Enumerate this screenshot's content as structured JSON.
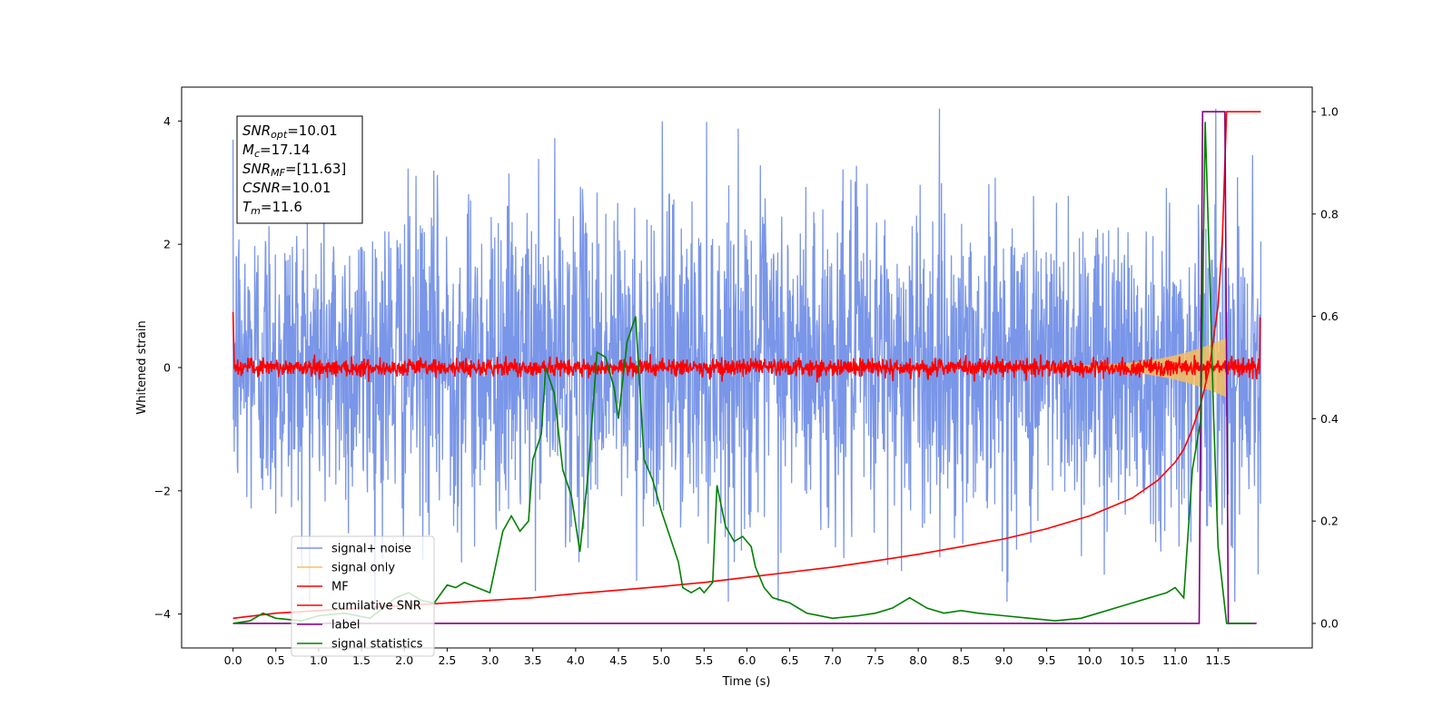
{
  "chart_data": {
    "type": "line",
    "xlabel": "Time (s)",
    "ylabel": "Whitened strain",
    "xlim": [
      -0.6,
      12.6
    ],
    "ylim_left": [
      -4.55,
      4.55
    ],
    "ylim_right": [
      -0.048,
      1.048
    ],
    "x_ticks": [
      0.0,
      0.5,
      1.0,
      1.5,
      2.0,
      2.5,
      3.0,
      3.5,
      4.0,
      4.5,
      5.0,
      5.5,
      6.0,
      6.5,
      7.0,
      7.5,
      8.0,
      8.5,
      9.0,
      9.5,
      10.0,
      10.5,
      11.0,
      11.5
    ],
    "x_tick_labels": [
      "0.0",
      "0.5",
      "1.0",
      "1.5",
      "2.0",
      "2.5",
      "3.0",
      "3.5",
      "4.0",
      "4.5",
      "5.0",
      "5.5",
      "6.0",
      "6.5",
      "7.0",
      "7.5",
      "8.0",
      "8.5",
      "9.0",
      "9.5",
      "10.0",
      "10.5",
      "11.0",
      "11.5"
    ],
    "y_left_ticks": [
      -4,
      -2,
      0,
      2,
      4
    ],
    "y_left_tick_labels": [
      "−4",
      "−2",
      "0",
      "2",
      "4"
    ],
    "y_right_ticks": [
      0.0,
      0.2,
      0.4,
      0.6,
      0.8,
      1.0
    ],
    "y_right_tick_labels": [
      "0.0",
      "0.2",
      "0.4",
      "0.6",
      "0.8",
      "1.0"
    ],
    "grid": false,
    "legend_placement": "lower-left",
    "annotation": [
      {
        "var": "SNR",
        "sub": "opt",
        "value": "=10.01"
      },
      {
        "var": "M",
        "sub": "c",
        "value": "=17.14"
      },
      {
        "var": "SNR",
        "sub": "MF",
        "value": "=[11.63]"
      },
      {
        "var": "CSNR",
        "sub": "",
        "value": "=10.01"
      },
      {
        "var": "T",
        "sub": "m",
        "value": "=11.6"
      }
    ],
    "series": [
      {
        "name": "signal+ noise",
        "color": "#7a96e8",
        "axis": "left",
        "kind": "noise",
        "t_start": 0.0,
        "t_end": 12.0,
        "amplitude": 2.7
      },
      {
        "name": "signal only",
        "color": "#f5c060",
        "axis": "left",
        "kind": "chirp",
        "t_start": 0.0,
        "t_end": 12.0,
        "merger_time": 11.6
      },
      {
        "name": "MF",
        "color": "#ff0000",
        "axis": "left",
        "kind": "noise",
        "t_start": 0.0,
        "t_end": 12.0,
        "amplitude": 0.13
      },
      {
        "name": "cumilative SNR",
        "color": "#ff0000",
        "axis": "right",
        "x": [
          0.0,
          0.5,
          1.0,
          1.5,
          2.0,
          2.5,
          3.0,
          3.5,
          4.0,
          4.5,
          5.0,
          5.5,
          6.0,
          6.5,
          7.0,
          7.5,
          8.0,
          8.5,
          9.0,
          9.5,
          10.0,
          10.5,
          10.8,
          11.0,
          11.1,
          11.2,
          11.3,
          11.4,
          11.5,
          11.55,
          11.6,
          12.0
        ],
        "y": [
          0.01,
          0.02,
          0.025,
          0.03,
          0.035,
          0.04,
          0.045,
          0.05,
          0.058,
          0.065,
          0.072,
          0.08,
          0.09,
          0.1,
          0.11,
          0.122,
          0.135,
          0.15,
          0.165,
          0.185,
          0.21,
          0.245,
          0.28,
          0.315,
          0.34,
          0.38,
          0.43,
          0.5,
          0.62,
          0.75,
          1.0,
          1.0
        ]
      },
      {
        "name": "label",
        "color": "#800080",
        "axis": "right",
        "x": [
          0.0,
          11.28,
          11.32,
          11.58,
          11.62,
          11.95
        ],
        "y": [
          0.0,
          0.0,
          1.0,
          1.0,
          0.0,
          0.0
        ]
      },
      {
        "name": "signal statistics",
        "color": "#008000",
        "axis": "right",
        "x": [
          0.0,
          0.2,
          0.35,
          0.5,
          0.8,
          1.0,
          1.3,
          1.6,
          1.9,
          2.05,
          2.2,
          2.35,
          2.5,
          2.6,
          2.7,
          2.85,
          3.0,
          3.1,
          3.15,
          3.25,
          3.35,
          3.45,
          3.5,
          3.6,
          3.65,
          3.75,
          3.85,
          3.95,
          4.05,
          4.15,
          4.25,
          4.35,
          4.45,
          4.5,
          4.6,
          4.7,
          4.8,
          4.9,
          5.0,
          5.1,
          5.2,
          5.25,
          5.35,
          5.45,
          5.5,
          5.6,
          5.65,
          5.75,
          5.85,
          5.95,
          6.05,
          6.1,
          6.2,
          6.3,
          6.5,
          6.7,
          7.0,
          7.3,
          7.5,
          7.7,
          7.9,
          8.1,
          8.3,
          8.5,
          8.7,
          9.0,
          9.3,
          9.6,
          9.9,
          10.1,
          10.3,
          10.5,
          10.7,
          10.9,
          11.0,
          11.1,
          11.2,
          11.3,
          11.35,
          11.4,
          11.45,
          11.5,
          11.6,
          11.9
        ],
        "y": [
          0.0,
          0.005,
          0.02,
          0.01,
          0.005,
          0.015,
          0.02,
          0.01,
          0.05,
          0.06,
          0.045,
          0.04,
          0.075,
          0.07,
          0.08,
          0.07,
          0.06,
          0.14,
          0.18,
          0.21,
          0.18,
          0.2,
          0.32,
          0.37,
          0.5,
          0.45,
          0.3,
          0.25,
          0.14,
          0.3,
          0.53,
          0.52,
          0.46,
          0.4,
          0.55,
          0.6,
          0.32,
          0.28,
          0.22,
          0.17,
          0.12,
          0.07,
          0.06,
          0.07,
          0.06,
          0.08,
          0.27,
          0.19,
          0.16,
          0.17,
          0.15,
          0.11,
          0.07,
          0.05,
          0.04,
          0.02,
          0.01,
          0.015,
          0.02,
          0.03,
          0.05,
          0.03,
          0.02,
          0.025,
          0.02,
          0.015,
          0.01,
          0.005,
          0.01,
          0.02,
          0.03,
          0.04,
          0.05,
          0.06,
          0.07,
          0.05,
          0.3,
          0.4,
          0.98,
          0.7,
          0.4,
          0.15,
          0.0,
          0.0
        ]
      }
    ]
  }
}
